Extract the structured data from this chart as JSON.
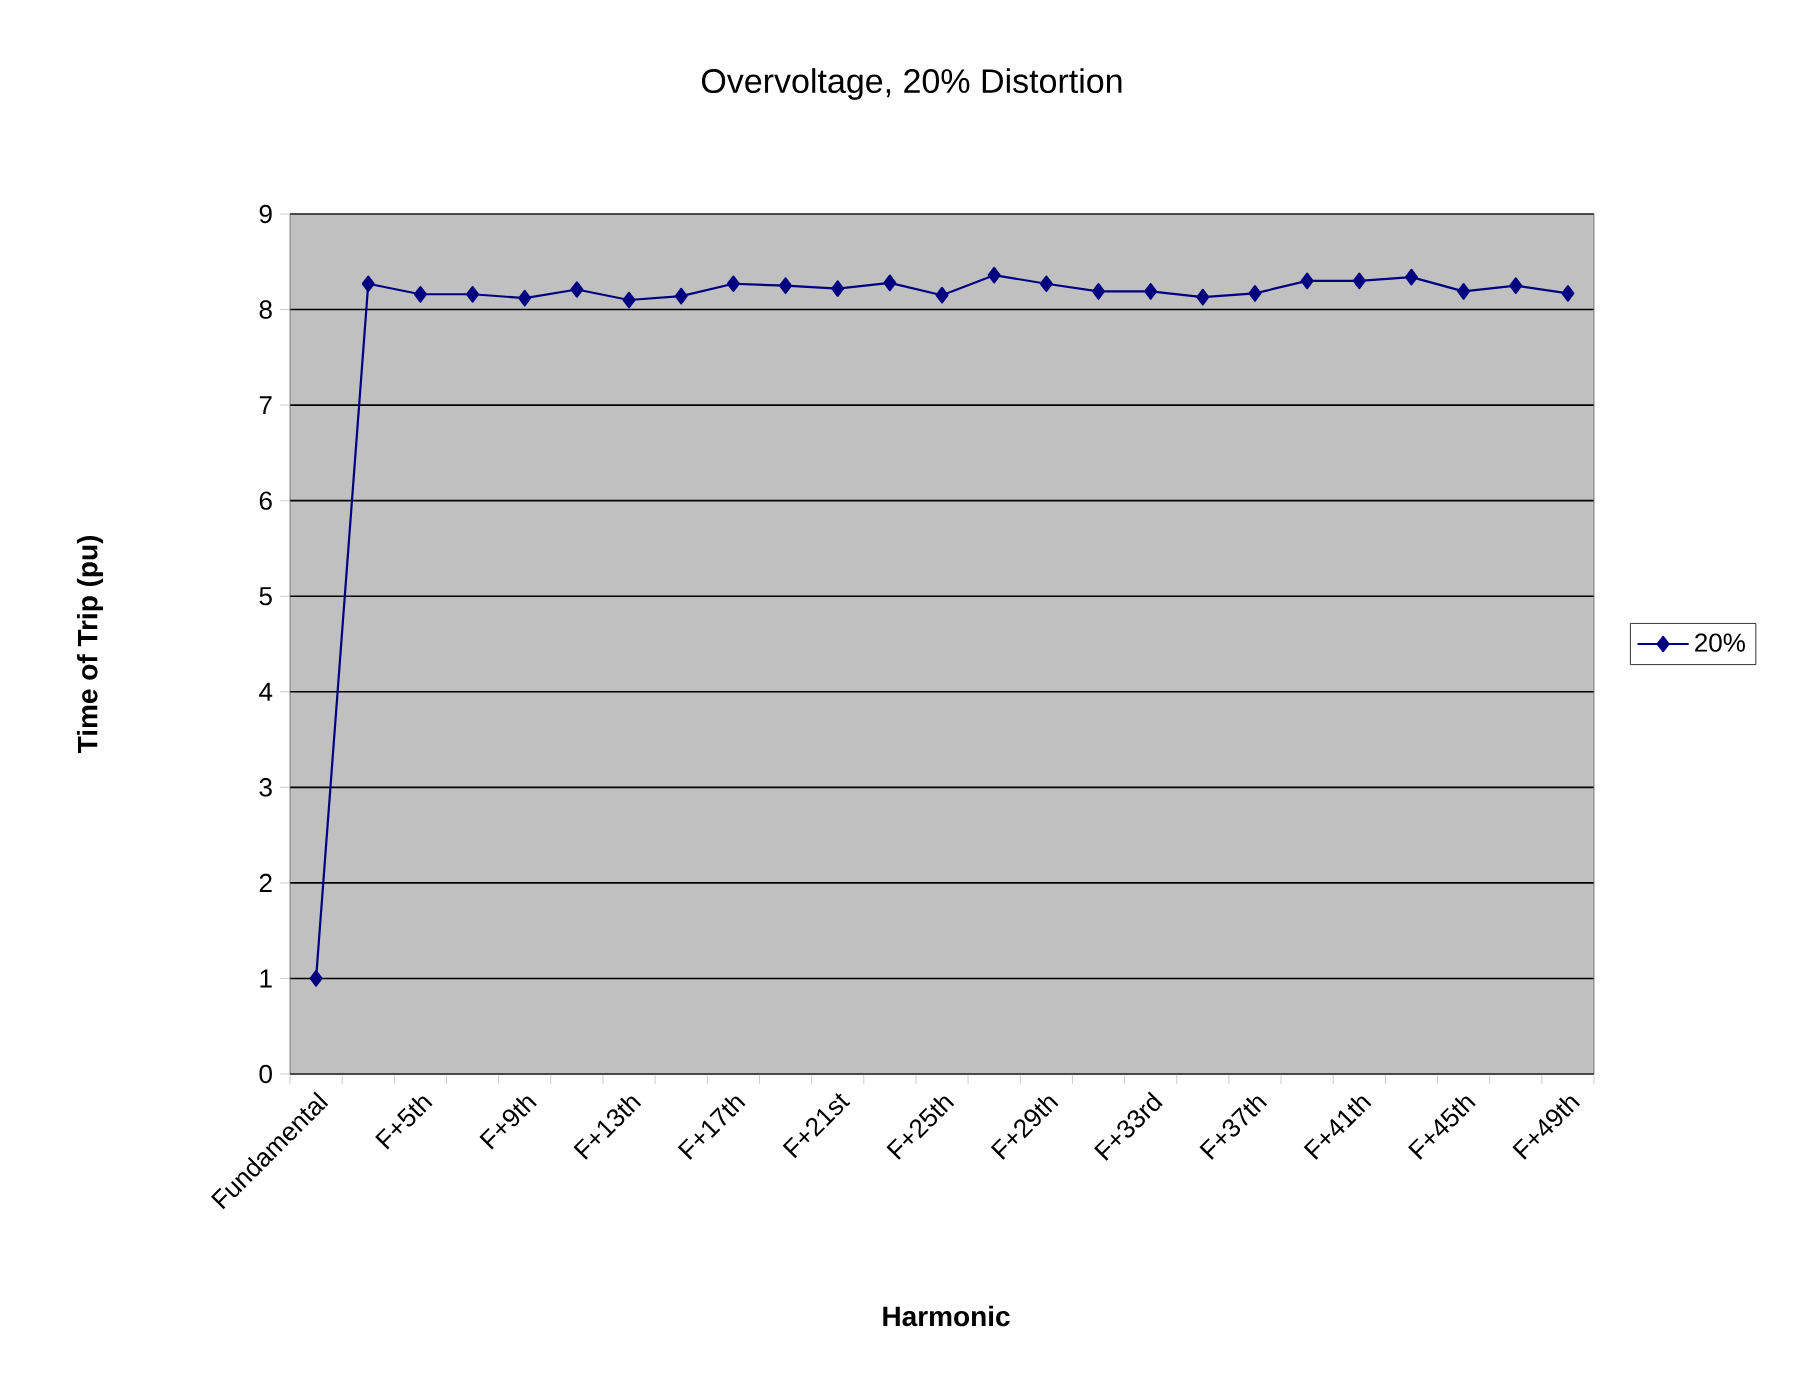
{
  "chart_data": {
    "type": "line",
    "title": "Overvoltage, 20% Distortion",
    "xlabel": "Harmonic",
    "ylabel": "Time of Trip (pu)",
    "categories": [
      "Fundamental",
      null,
      "F+5th",
      null,
      "F+9th",
      null,
      "F+13th",
      null,
      "F+17th",
      null,
      "F+21st",
      null,
      "F+25th",
      null,
      "F+29th",
      null,
      "F+33rd",
      null,
      "F+37th",
      null,
      "F+41th",
      null,
      "F+45th",
      null,
      "F+49th"
    ],
    "series": [
      {
        "name": "20%",
        "color": "#000080",
        "values": [
          1.0,
          8.27,
          8.16,
          8.16,
          8.12,
          8.21,
          8.1,
          8.14,
          8.27,
          8.25,
          8.22,
          8.28,
          8.15,
          8.36,
          8.27,
          8.19,
          8.19,
          8.13,
          8.17,
          8.3,
          8.3,
          8.34,
          8.19,
          8.25,
          8.17
        ]
      }
    ],
    "ylim": [
      0,
      9
    ],
    "yticks": [
      0,
      1,
      2,
      3,
      4,
      5,
      6,
      7,
      8,
      9
    ],
    "grid": "y",
    "legend": "right",
    "marker": "diamond",
    "line_style": "solid"
  }
}
